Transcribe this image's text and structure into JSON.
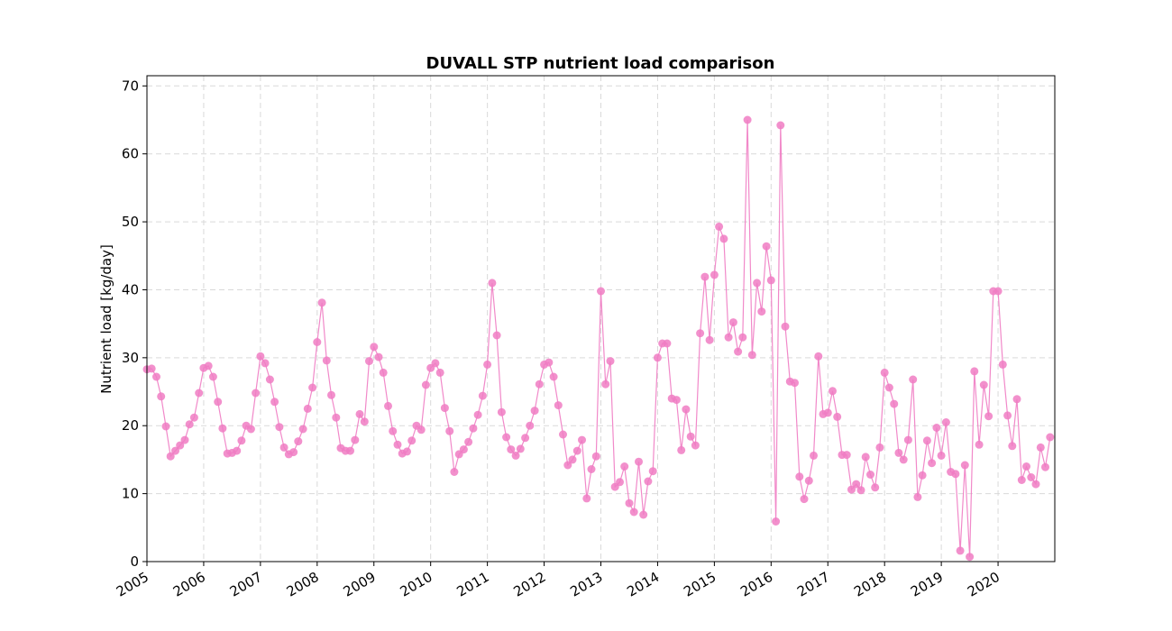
{
  "chart_data": {
    "type": "line",
    "title": "DUVALL STP nutrient load comparison",
    "xlabel": "",
    "ylabel": "Nutrient load [kg/day]",
    "ylim": [
      0,
      71.5
    ],
    "xlim": [
      "2005-01",
      "2021-01"
    ],
    "yticks": [
      0,
      10,
      20,
      30,
      40,
      50,
      60,
      70
    ],
    "xticks": [
      "2005",
      "2006",
      "2007",
      "2008",
      "2009",
      "2010",
      "2011",
      "2012",
      "2013",
      "2014",
      "2015",
      "2016",
      "2017",
      "2018",
      "2019",
      "2020"
    ],
    "grid": true,
    "color": "#f07cc3",
    "series": [
      {
        "x": [
          "2005-01",
          "2005-02",
          "2005-03",
          "2005-04",
          "2005-05",
          "2005-06",
          "2005-07",
          "2005-08",
          "2005-09",
          "2005-10",
          "2005-11",
          "2005-12",
          "2006-01",
          "2006-02",
          "2006-03",
          "2006-04",
          "2006-05",
          "2006-06",
          "2006-07",
          "2006-08",
          "2006-09",
          "2006-10",
          "2006-11",
          "2006-12",
          "2007-01",
          "2007-02",
          "2007-03",
          "2007-04",
          "2007-05",
          "2007-06",
          "2007-07",
          "2007-08",
          "2007-09",
          "2007-10",
          "2007-11",
          "2007-12",
          "2008-01",
          "2008-02",
          "2008-03",
          "2008-04",
          "2008-05",
          "2008-06",
          "2008-07",
          "2008-08",
          "2008-09",
          "2008-10",
          "2008-11",
          "2008-12",
          "2009-01",
          "2009-02",
          "2009-03",
          "2009-04",
          "2009-05",
          "2009-06",
          "2009-07",
          "2009-08",
          "2009-09",
          "2009-10",
          "2009-11",
          "2009-12",
          "2010-01",
          "2010-02",
          "2010-03",
          "2010-04",
          "2010-05",
          "2010-06",
          "2010-07",
          "2010-08",
          "2010-09",
          "2010-10",
          "2010-11",
          "2010-12",
          "2011-01",
          "2011-02",
          "2011-03",
          "2011-04",
          "2011-05",
          "2011-06",
          "2011-07",
          "2011-08",
          "2011-09",
          "2011-10",
          "2011-11",
          "2011-12",
          "2012-01",
          "2012-02",
          "2012-03",
          "2012-04",
          "2012-05",
          "2012-06",
          "2012-07",
          "2012-08",
          "2012-09",
          "2012-10",
          "2012-11",
          "2012-12",
          "2013-01",
          "2013-02",
          "2013-03",
          "2013-04",
          "2013-05",
          "2013-06",
          "2013-07",
          "2013-08",
          "2013-09",
          "2013-10",
          "2013-11",
          "2013-12",
          "2014-01",
          "2014-02",
          "2014-03",
          "2014-04",
          "2014-05",
          "2014-06",
          "2014-07",
          "2014-08",
          "2014-09",
          "2014-10",
          "2014-11",
          "2014-12",
          "2015-01",
          "2015-02",
          "2015-03",
          "2015-04",
          "2015-05",
          "2015-06",
          "2015-07",
          "2015-08",
          "2015-09",
          "2015-10",
          "2015-11",
          "2015-12",
          "2016-01",
          "2016-02",
          "2016-03",
          "2016-04",
          "2016-05",
          "2016-06",
          "2016-07",
          "2016-08",
          "2016-09",
          "2016-10",
          "2016-11",
          "2016-12",
          "2017-01",
          "2017-02",
          "2017-03",
          "2017-04",
          "2017-05",
          "2017-06",
          "2017-07",
          "2017-08",
          "2017-09",
          "2017-10",
          "2017-11",
          "2017-12",
          "2018-01",
          "2018-02",
          "2018-03",
          "2018-04",
          "2018-05",
          "2018-06",
          "2018-07",
          "2018-08",
          "2018-09",
          "2018-10",
          "2018-11",
          "2018-12",
          "2019-01",
          "2019-02",
          "2019-03",
          "2019-04",
          "2019-05",
          "2019-06",
          "2019-07",
          "2019-08",
          "2019-09",
          "2019-10",
          "2019-11",
          "2019-12",
          "2020-01",
          "2020-02",
          "2020-03",
          "2020-04",
          "2020-05",
          "2020-06",
          "2020-07",
          "2020-08",
          "2020-09",
          "2020-10",
          "2020-11",
          "2020-12"
        ],
        "y": [
          28.3,
          28.4,
          27.2,
          24.3,
          19.9,
          15.5,
          16.3,
          17.1,
          17.9,
          20.2,
          21.2,
          24.8,
          28.5,
          28.8,
          27.2,
          23.5,
          19.6,
          15.9,
          16.0,
          16.3,
          17.8,
          20.0,
          19.5,
          24.8,
          30.2,
          29.2,
          26.8,
          23.5,
          19.8,
          16.8,
          15.8,
          16.1,
          17.7,
          19.5,
          22.5,
          25.6,
          32.3,
          38.1,
          29.6,
          24.5,
          21.2,
          16.7,
          16.3,
          16.3,
          17.9,
          21.7,
          20.6,
          29.5,
          31.6,
          30.1,
          27.8,
          22.9,
          19.2,
          17.2,
          15.9,
          16.2,
          17.8,
          20.0,
          19.4,
          26.0,
          28.5,
          29.2,
          27.8,
          22.6,
          19.2,
          13.2,
          15.8,
          16.5,
          17.6,
          19.6,
          21.6,
          24.4,
          29.0,
          41.0,
          33.3,
          22.0,
          18.3,
          16.5,
          15.6,
          16.6,
          18.2,
          20.0,
          22.2,
          26.1,
          29.0,
          29.3,
          27.2,
          23.0,
          18.7,
          14.2,
          15.0,
          16.3,
          17.9,
          9.3,
          13.6,
          15.5,
          39.8,
          26.1,
          29.5,
          11.0,
          11.7,
          14.0,
          8.6,
          7.3,
          14.7,
          6.9,
          11.8,
          13.3,
          30.0,
          32.1,
          32.1,
          24.0,
          23.8,
          16.4,
          22.4,
          18.4,
          17.1,
          33.6,
          41.9,
          32.6,
          42.2,
          49.3,
          47.5,
          33.0,
          35.2,
          30.9,
          33.0,
          65.0,
          30.4,
          41.0,
          36.8,
          46.4,
          41.4,
          5.9,
          64.2,
          34.6,
          26.5,
          26.3,
          12.5,
          9.2,
          11.9,
          15.6,
          30.2,
          21.7,
          21.9,
          25.1,
          21.3,
          15.7,
          15.7,
          10.6,
          11.4,
          10.5,
          15.4,
          12.8,
          10.9,
          16.8,
          27.8,
          25.6,
          23.2,
          16.0,
          15.0,
          17.9,
          26.8,
          9.5,
          12.7,
          17.8,
          14.5,
          19.7,
          15.6,
          20.5,
          13.2,
          12.9,
          1.6,
          14.2,
          0.7,
          28.0,
          17.2,
          26.0,
          21.4,
          39.8,
          39.8,
          29.0,
          21.5,
          17.0,
          23.9,
          12.0,
          14.0,
          12.4,
          11.4,
          16.8,
          13.9,
          18.3
        ]
      }
    ]
  }
}
